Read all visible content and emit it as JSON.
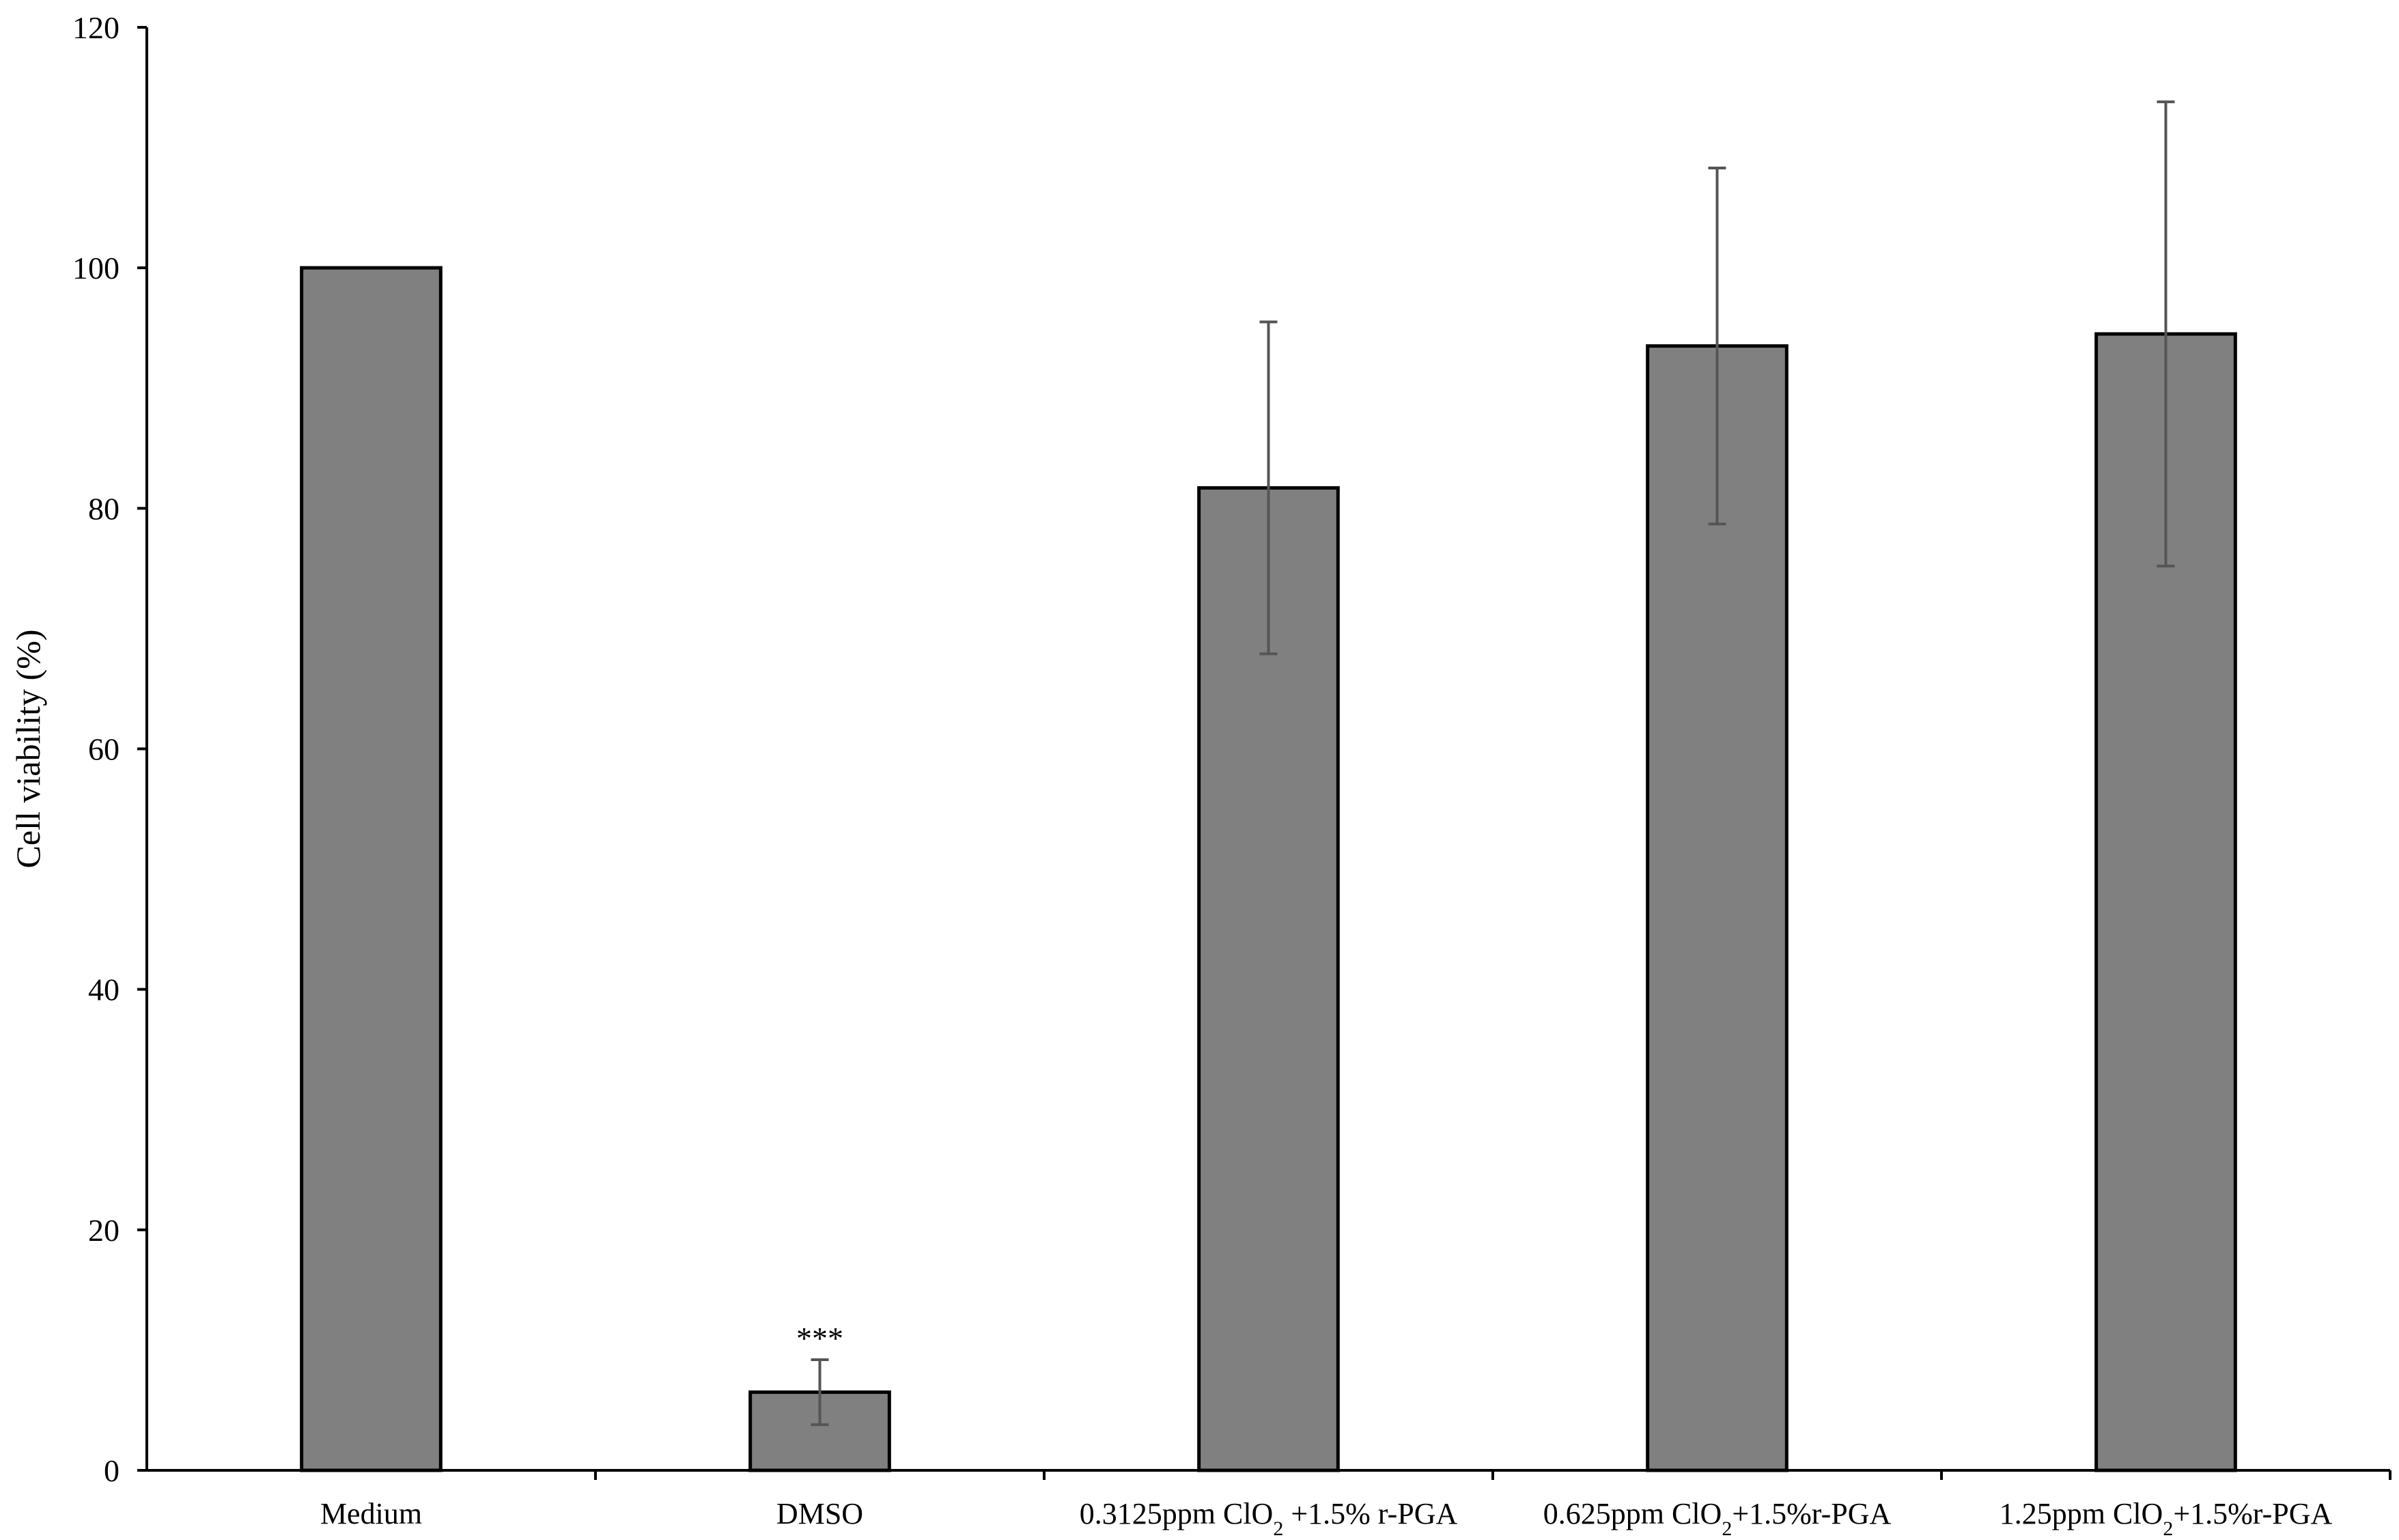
{
  "chart_data": {
    "type": "bar",
    "title": "",
    "xlabel": "",
    "ylabel": "Cell viability (%)",
    "ylim": [
      0,
      120
    ],
    "yticks": [
      0,
      20,
      40,
      60,
      80,
      100,
      120
    ],
    "grid": false,
    "legend": "none",
    "bar_color": "#808080",
    "categories": [
      {
        "parts": [
          {
            "t": "Medium"
          }
        ]
      },
      {
        "parts": [
          {
            "t": "DMSO"
          }
        ]
      },
      {
        "parts": [
          {
            "t": "0.3125ppm ClO"
          },
          {
            "t": "2",
            "sub": true
          },
          {
            "t": " +1.5% r-PGA"
          }
        ]
      },
      {
        "parts": [
          {
            "t": "0.625ppm ClO"
          },
          {
            "t": "2",
            "sub": true
          },
          {
            "t": "+1.5%r-PGA"
          }
        ]
      },
      {
        "parts": [
          {
            "t": "1.25ppm ClO"
          },
          {
            "t": "2",
            "sub": true
          },
          {
            "t": "+1.5%r-PGA"
          }
        ]
      }
    ],
    "series": [
      {
        "values": [
          100,
          6.5,
          81.7,
          93.5,
          94.5
        ],
        "errors": [
          null,
          2.7,
          13.8,
          14.8,
          19.3
        ]
      }
    ],
    "annotations": [
      {
        "category_index": 1,
        "text": "***"
      }
    ]
  }
}
